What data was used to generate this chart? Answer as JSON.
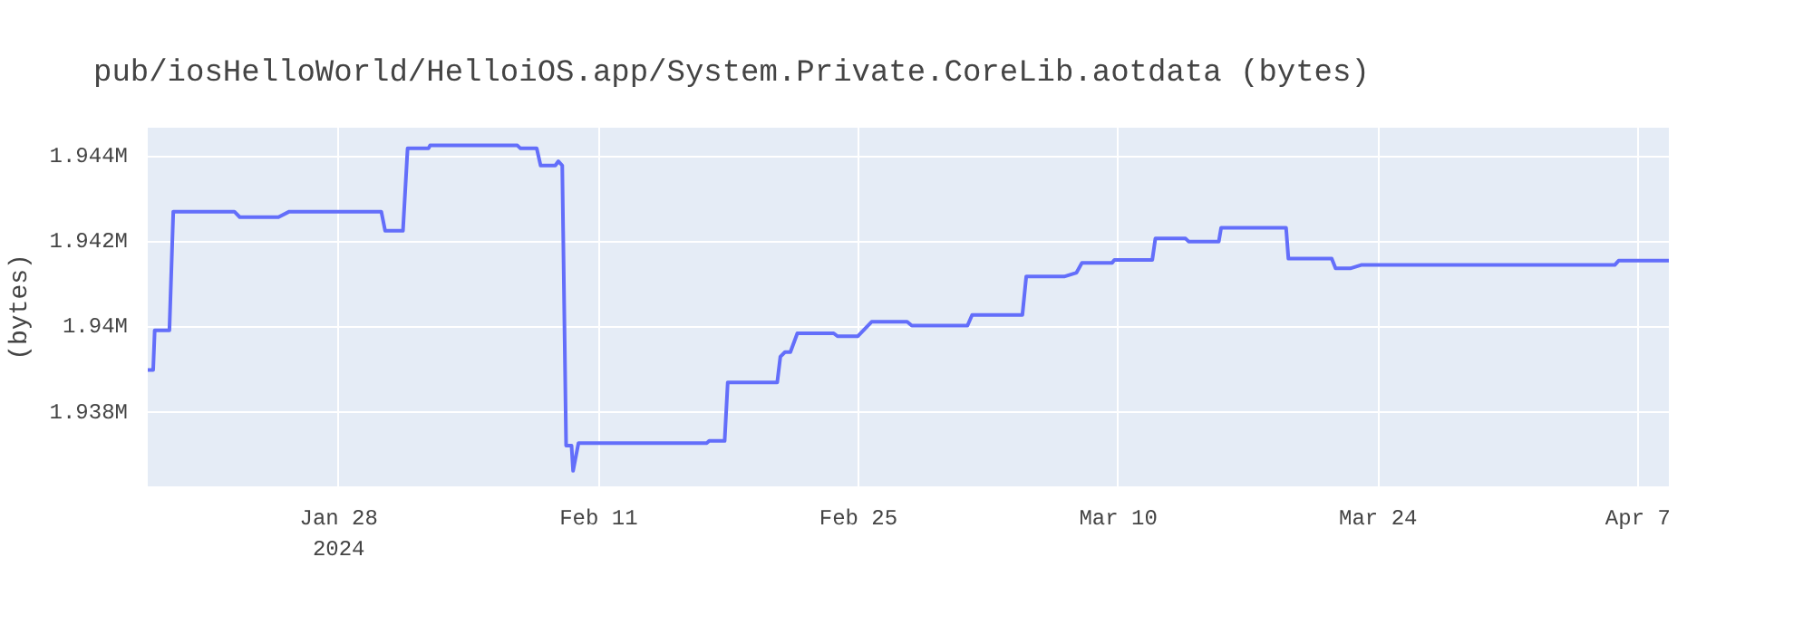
{
  "chart_data": {
    "type": "line",
    "title": "pub/iosHelloWorld/HelloiOS.app/System.Private.CoreLib.aotdata (bytes)",
    "ylabel": "(bytes)",
    "x": [
      "2024-01-17T17:00",
      "2024-01-18T00:00",
      "2024-01-18T02:00",
      "2024-01-18T21:00",
      "2024-01-19T02:00",
      "2024-01-22T09:00",
      "2024-01-22T16:00",
      "2024-01-24T18:00",
      "2024-01-25T08:00",
      "2024-01-30T07:00",
      "2024-01-30T12:00",
      "2024-01-31T11:00",
      "2024-01-31T17:00",
      "2024-02-01T20:00",
      "2024-02-01T22:00",
      "2024-02-06T15:00",
      "2024-02-06T19:00",
      "2024-02-07T16:00",
      "2024-02-07T21:00",
      "2024-02-08T16:00",
      "2024-02-08T20:00",
      "2024-02-09T01:00",
      "2024-02-09T06:00",
      "2024-02-09T13:00",
      "2024-02-09T15:00",
      "2024-02-09T22:00",
      "2024-02-16T20:00",
      "2024-02-16T23:00",
      "2024-02-17T19:00",
      "2024-02-17T23:00",
      "2024-02-20T15:00",
      "2024-02-20T19:00",
      "2024-02-21T01:00",
      "2024-02-21T08:00",
      "2024-02-21T17:00",
      "2024-02-23T16:00",
      "2024-02-23T21:00",
      "2024-02-24T23:00",
      "2024-02-25T17:00",
      "2024-02-27T15:00",
      "2024-02-27T21:00",
      "2024-03-01T21:00",
      "2024-03-02T03:00",
      "2024-03-04T20:00",
      "2024-03-05T01:00",
      "2024-03-07T02:00",
      "2024-03-07T18:00",
      "2024-03-08T01:00",
      "2024-03-09T16:00",
      "2024-03-09T19:00",
      "2024-03-11T20:00",
      "2024-03-12T00:00",
      "2024-03-13T15:00",
      "2024-03-13T19:00",
      "2024-03-15T10:00",
      "2024-03-15T13:00",
      "2024-03-19T01:00",
      "2024-03-19T04:00",
      "2024-03-21T12:00",
      "2024-03-21T17:00",
      "2024-03-22T12:00",
      "2024-03-23T02:00",
      "2024-04-05T18:00",
      "2024-04-05T23:00",
      "2024-04-08T16:00"
    ],
    "series": [
      {
        "color": "#636efa",
        "values": [
          1939000,
          1939000,
          1939930,
          1939930,
          1942710,
          1942710,
          1942580,
          1942580,
          1942710,
          1942710,
          1942260,
          1942260,
          1944190,
          1944190,
          1944260,
          1944260,
          1944190,
          1944190,
          1943790,
          1943790,
          1943890,
          1943790,
          1937230,
          1937230,
          1936640,
          1937290,
          1937290,
          1937340,
          1937340,
          1938710,
          1938710,
          1939310,
          1939420,
          1939420,
          1939860,
          1939860,
          1939790,
          1939790,
          1940130,
          1940130,
          1940040,
          1940040,
          1940290,
          1940290,
          1941190,
          1941190,
          1941280,
          1941510,
          1941510,
          1941580,
          1941580,
          1942080,
          1942080,
          1942010,
          1942010,
          1942330,
          1942330,
          1941610,
          1941610,
          1941380,
          1941380,
          1941460,
          1941460,
          1941560,
          1941560
        ]
      }
    ],
    "xlim": [
      "2024-01-17T17:00",
      "2024-04-08T16:00"
    ],
    "xticks": [
      {
        "value": "2024-01-28",
        "label": "Jan 28\n2024"
      },
      {
        "value": "2024-02-11",
        "label": "Feb 11"
      },
      {
        "value": "2024-02-25",
        "label": "Feb 25"
      },
      {
        "value": "2024-03-10",
        "label": "Mar 10"
      },
      {
        "value": "2024-03-24",
        "label": "Mar 24"
      },
      {
        "value": "2024-04-07",
        "label": "Apr 7"
      }
    ],
    "ylim": [
      1936275,
      1944675
    ],
    "yticks": [
      {
        "value": 1938000,
        "label": "1.938M"
      },
      {
        "value": 1940000,
        "label": "1.94M"
      },
      {
        "value": 1942000,
        "label": "1.942M"
      },
      {
        "value": 1944000,
        "label": "1.944M"
      }
    ],
    "grid": true,
    "line_style": "solid"
  }
}
